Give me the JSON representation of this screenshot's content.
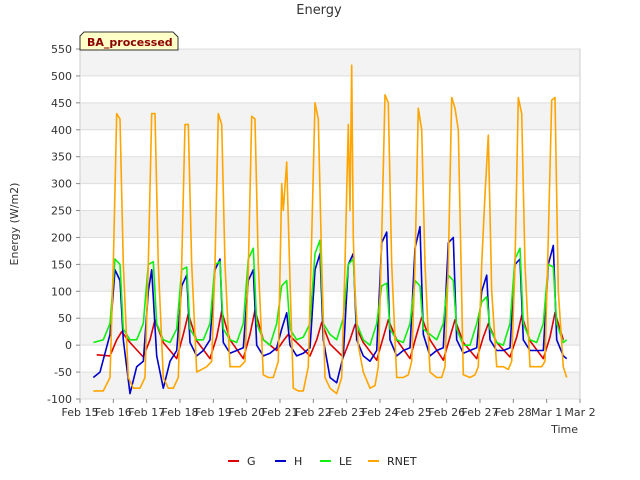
{
  "chart_data": {
    "type": "line",
    "title": "Energy",
    "badge": "BA_processed",
    "xlabel": "Time",
    "ylabel": "Energy (W/m2)",
    "ylim": [
      -100,
      550
    ],
    "yticks": [
      -100,
      -50,
      0,
      50,
      100,
      150,
      200,
      250,
      300,
      350,
      400,
      450,
      500,
      550
    ],
    "xlim": [
      0,
      15
    ],
    "xtick_labels": [
      "Feb 15",
      "Feb 16",
      "Feb 17",
      "Feb 18",
      "Feb 19",
      "Feb 20",
      "Feb 21",
      "Feb 22",
      "Feb 23",
      "Feb 24",
      "Feb 25",
      "Feb 26",
      "Feb 27",
      "Feb 28",
      "Mar 1",
      "Mar 2"
    ],
    "grid": true,
    "legend_position": "bottom",
    "colors": {
      "G": "#dd0000",
      "H": "#0000cc",
      "LE": "#11ee11",
      "RNET": "#ffa500"
    },
    "series": [
      {
        "name": "G",
        "x": [
          0.5,
          0.9,
          1.1,
          1.25,
          1.5,
          1.9,
          2.1,
          2.25,
          2.5,
          2.9,
          3.1,
          3.25,
          3.5,
          3.9,
          4.1,
          4.25,
          4.5,
          4.9,
          5.1,
          5.25,
          5.5,
          5.9,
          6.1,
          6.25,
          6.5,
          6.9,
          7.1,
          7.25,
          7.5,
          7.9,
          8.1,
          8.25,
          8.5,
          8.9,
          9.1,
          9.25,
          9.5,
          9.9,
          10.1,
          10.25,
          10.5,
          10.9,
          11.1,
          11.25,
          11.5,
          11.9,
          12.1,
          12.25,
          12.5,
          12.9,
          13.1,
          13.25,
          13.5,
          13.9,
          14.1,
          14.25,
          14.5
        ],
        "y": [
          -18,
          -20,
          10,
          25,
          5,
          -22,
          10,
          47,
          5,
          -25,
          20,
          58,
          8,
          -25,
          15,
          63,
          10,
          -25,
          20,
          65,
          10,
          -10,
          8,
          20,
          5,
          -20,
          10,
          42,
          2,
          -22,
          10,
          38,
          5,
          -28,
          15,
          47,
          10,
          -25,
          20,
          52,
          10,
          -28,
          15,
          47,
          5,
          -25,
          15,
          40,
          5,
          -22,
          15,
          55,
          8,
          -25,
          15,
          60,
          10
        ]
      },
      {
        "name": "H",
        "x": [
          0.4,
          0.6,
          0.9,
          1.05,
          1.2,
          1.3,
          1.5,
          1.7,
          1.9,
          2.05,
          2.15,
          2.3,
          2.5,
          2.7,
          2.9,
          3.05,
          3.2,
          3.3,
          3.5,
          3.7,
          3.9,
          4.05,
          4.2,
          4.3,
          4.5,
          4.7,
          4.9,
          5.05,
          5.2,
          5.3,
          5.5,
          5.7,
          5.9,
          6.05,
          6.2,
          6.3,
          6.5,
          6.7,
          6.9,
          7.05,
          7.2,
          7.3,
          7.5,
          7.7,
          7.9,
          8.05,
          8.2,
          8.3,
          8.5,
          8.7,
          8.9,
          9.05,
          9.2,
          9.3,
          9.5,
          9.7,
          9.9,
          10.05,
          10.2,
          10.3,
          10.5,
          10.7,
          10.9,
          11.05,
          11.2,
          11.3,
          11.5,
          11.7,
          11.9,
          12.05,
          12.2,
          12.3,
          12.5,
          12.7,
          12.9,
          13.05,
          13.2,
          13.3,
          13.5,
          13.7,
          13.9,
          14.05,
          14.2,
          14.3,
          14.5,
          14.6
        ],
        "y": [
          -60,
          -50,
          20,
          140,
          120,
          10,
          -90,
          -40,
          -30,
          100,
          140,
          -20,
          -80,
          -30,
          -10,
          110,
          130,
          5,
          -20,
          -10,
          10,
          140,
          160,
          5,
          -15,
          -10,
          -5,
          120,
          140,
          0,
          -20,
          -15,
          -5,
          30,
          60,
          0,
          -20,
          -15,
          -5,
          140,
          170,
          10,
          -60,
          -70,
          -20,
          150,
          170,
          10,
          -20,
          -30,
          -10,
          190,
          210,
          10,
          -20,
          -10,
          -5,
          180,
          220,
          20,
          -20,
          -10,
          -5,
          190,
          200,
          10,
          -15,
          -10,
          -5,
          100,
          130,
          10,
          -10,
          -10,
          -5,
          150,
          160,
          10,
          -10,
          -10,
          -10,
          150,
          185,
          10,
          -20,
          -25
        ]
      },
      {
        "name": "LE",
        "x": [
          0.4,
          0.7,
          0.9,
          1.05,
          1.2,
          1.3,
          1.5,
          1.7,
          1.9,
          2.05,
          2.2,
          2.3,
          2.5,
          2.7,
          2.9,
          3.05,
          3.2,
          3.3,
          3.5,
          3.7,
          3.9,
          4.05,
          4.2,
          4.3,
          4.5,
          4.7,
          4.9,
          5.05,
          5.2,
          5.3,
          5.5,
          5.7,
          5.9,
          6.05,
          6.2,
          6.3,
          6.5,
          6.7,
          6.9,
          7.05,
          7.2,
          7.3,
          7.5,
          7.7,
          7.9,
          8.05,
          8.2,
          8.3,
          8.5,
          8.7,
          8.9,
          9.05,
          9.2,
          9.3,
          9.5,
          9.7,
          9.9,
          10.05,
          10.2,
          10.3,
          10.5,
          10.7,
          10.9,
          11.05,
          11.2,
          11.3,
          11.5,
          11.7,
          11.9,
          12.05,
          12.2,
          12.3,
          12.5,
          12.7,
          12.9,
          13.05,
          13.2,
          13.3,
          13.5,
          13.7,
          13.9,
          14.05,
          14.2,
          14.3,
          14.5,
          14.6
        ],
        "y": [
          5,
          10,
          40,
          160,
          150,
          30,
          10,
          10,
          40,
          150,
          155,
          40,
          10,
          5,
          30,
          140,
          145,
          30,
          10,
          10,
          40,
          150,
          155,
          30,
          10,
          5,
          40,
          160,
          180,
          40,
          10,
          0,
          40,
          110,
          120,
          30,
          10,
          15,
          40,
          170,
          195,
          40,
          20,
          10,
          50,
          150,
          160,
          40,
          10,
          0,
          40,
          110,
          115,
          30,
          10,
          5,
          40,
          120,
          110,
          30,
          20,
          10,
          40,
          130,
          120,
          30,
          0,
          0,
          40,
          80,
          90,
          30,
          5,
          0,
          40,
          160,
          180,
          40,
          10,
          5,
          40,
          150,
          145,
          40,
          5,
          10
        ]
      },
      {
        "name": "RNET",
        "x": [
          0.4,
          0.7,
          0.9,
          1.0,
          1.1,
          1.2,
          1.3,
          1.45,
          1.6,
          1.8,
          1.95,
          2.05,
          2.15,
          2.25,
          2.35,
          2.5,
          2.65,
          2.8,
          2.95,
          3.05,
          3.15,
          3.25,
          3.35,
          3.5,
          3.65,
          3.8,
          3.95,
          4.05,
          4.15,
          4.25,
          4.35,
          4.5,
          4.65,
          4.8,
          4.95,
          5.05,
          5.15,
          5.25,
          5.35,
          5.5,
          5.65,
          5.8,
          5.95,
          6.05,
          6.1,
          6.2,
          6.3,
          6.4,
          6.55,
          6.7,
          6.85,
          6.95,
          7.05,
          7.15,
          7.25,
          7.35,
          7.5,
          7.7,
          7.85,
          7.95,
          8.05,
          8.1,
          8.15,
          8.2,
          8.25,
          8.35,
          8.5,
          8.7,
          8.85,
          8.95,
          9.05,
          9.15,
          9.25,
          9.35,
          9.5,
          9.7,
          9.85,
          9.95,
          10.05,
          10.15,
          10.25,
          10.35,
          10.5,
          10.7,
          10.85,
          10.95,
          11.05,
          11.15,
          11.25,
          11.35,
          11.5,
          11.7,
          11.85,
          11.95,
          12.05,
          12.15,
          12.25,
          12.35,
          12.5,
          12.7,
          12.85,
          12.95,
          13.05,
          13.15,
          13.25,
          13.35,
          13.5,
          13.7,
          13.85,
          13.95,
          14.05,
          14.15,
          14.25,
          14.35,
          14.5,
          14.6
        ],
        "y": [
          -85,
          -85,
          -60,
          150,
          430,
          420,
          150,
          -60,
          -80,
          -80,
          -60,
          150,
          430,
          430,
          150,
          -60,
          -80,
          -80,
          -60,
          150,
          410,
          410,
          150,
          -50,
          -45,
          -40,
          -30,
          150,
          430,
          410,
          150,
          -40,
          -40,
          -40,
          -30,
          140,
          425,
          420,
          150,
          -55,
          -60,
          -60,
          -30,
          300,
          250,
          340,
          120,
          -80,
          -85,
          -85,
          -40,
          200,
          450,
          420,
          150,
          -60,
          -80,
          -90,
          -60,
          150,
          410,
          250,
          520,
          200,
          100,
          0,
          -50,
          -80,
          -75,
          -40,
          200,
          465,
          450,
          150,
          -60,
          -60,
          -55,
          -30,
          150,
          440,
          400,
          150,
          -50,
          -60,
          -60,
          -40,
          150,
          460,
          440,
          400,
          -55,
          -60,
          -55,
          -40,
          150,
          280,
          390,
          100,
          -40,
          -40,
          -45,
          -30,
          150,
          460,
          430,
          150,
          -40,
          -40,
          -40,
          -30,
          200,
          455,
          460,
          100,
          -40,
          -60
        ]
      }
    ]
  }
}
